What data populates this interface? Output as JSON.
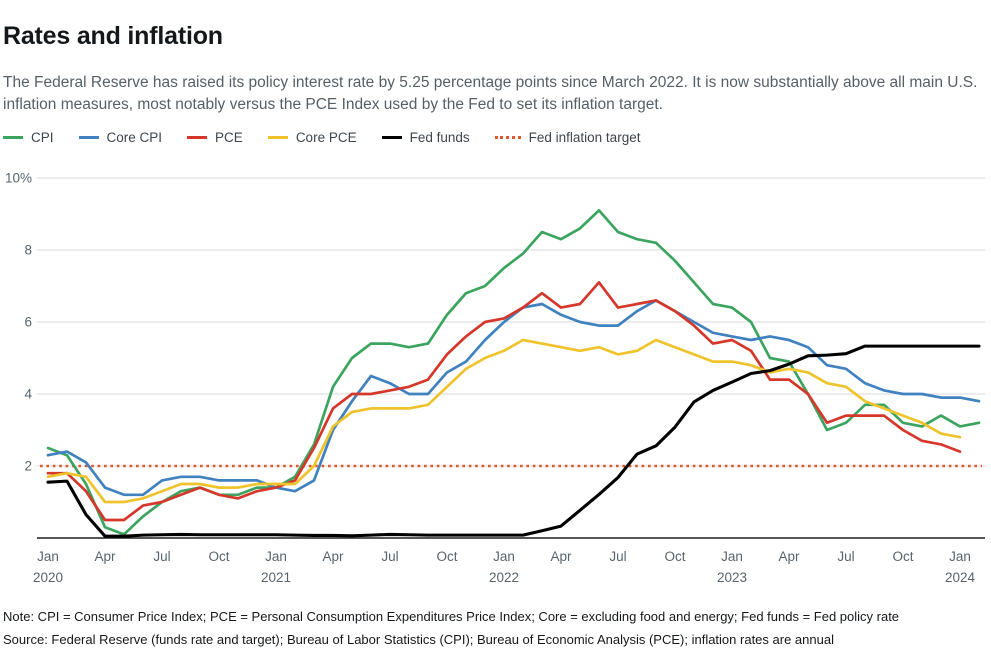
{
  "header": {
    "title": "Rates and inflation",
    "subtitle": "The Federal Reserve has raised its policy interest rate by 5.25 percentage points since March 2022. It is now substantially above all main U.S. inflation measures, most notably versus the PCE Index used by the Fed to set its inflation target."
  },
  "legend": {
    "items": [
      {
        "label": "CPI",
        "color": "#3ba45e",
        "style": "solid"
      },
      {
        "label": "Core CPI",
        "color": "#4081bf",
        "style": "solid"
      },
      {
        "label": "PCE",
        "color": "#d5372b",
        "style": "solid"
      },
      {
        "label": "Core PCE",
        "color": "#efc32c",
        "style": "solid"
      },
      {
        "label": "Fed funds",
        "color": "#000000",
        "style": "solid"
      },
      {
        "label": "Fed inflation target",
        "color": "#dc5a2b",
        "style": "dotted"
      }
    ]
  },
  "chart_data": {
    "type": "line",
    "title": "Rates and inflation",
    "x_unit": "month",
    "x_start": "2020-01",
    "x_end": "2024-02",
    "ylim": [
      0,
      10
    ],
    "grid": "horizontal",
    "legend_position": "top",
    "y_ticks": [
      {
        "v": 10,
        "label": "10%"
      },
      {
        "v": 8,
        "label": "8"
      },
      {
        "v": 6,
        "label": "6"
      },
      {
        "v": 4,
        "label": "4"
      },
      {
        "v": 2,
        "label": "2"
      }
    ],
    "x_ticks": [
      {
        "m": 0,
        "label": "Jan",
        "year": "2020"
      },
      {
        "m": 3,
        "label": "Apr"
      },
      {
        "m": 6,
        "label": "Jul"
      },
      {
        "m": 9,
        "label": "Oct"
      },
      {
        "m": 12,
        "label": "Jan",
        "year": "2021"
      },
      {
        "m": 15,
        "label": "Apr"
      },
      {
        "m": 18,
        "label": "Jul"
      },
      {
        "m": 21,
        "label": "Oct"
      },
      {
        "m": 24,
        "label": "Jan",
        "year": "2022"
      },
      {
        "m": 27,
        "label": "Apr"
      },
      {
        "m": 30,
        "label": "Jul"
      },
      {
        "m": 33,
        "label": "Oct"
      },
      {
        "m": 36,
        "label": "Jan",
        "year": "2023"
      },
      {
        "m": 39,
        "label": "Apr"
      },
      {
        "m": 42,
        "label": "Jul"
      },
      {
        "m": 45,
        "label": "Oct"
      },
      {
        "m": 48,
        "label": "Jan",
        "year": "2024"
      }
    ],
    "target_line": {
      "name": "Fed inflation target",
      "value": 2,
      "color": "#dc5a2b",
      "style": "dotted"
    },
    "series": [
      {
        "name": "CPI",
        "color": "#3ba45e",
        "width": 2.7,
        "values": [
          2.5,
          2.3,
          1.5,
          0.3,
          0.1,
          0.6,
          1.0,
          1.3,
          1.4,
          1.2,
          1.2,
          1.4,
          1.4,
          1.7,
          2.6,
          4.2,
          5.0,
          5.4,
          5.4,
          5.3,
          5.4,
          6.2,
          6.8,
          7.0,
          7.5,
          7.9,
          8.5,
          8.3,
          8.6,
          9.1,
          8.5,
          8.3,
          8.2,
          7.7,
          7.1,
          6.5,
          6.4,
          6.0,
          5.0,
          4.9,
          4.0,
          3.0,
          3.2,
          3.7,
          3.7,
          3.2,
          3.1,
          3.4,
          3.1,
          3.2
        ]
      },
      {
        "name": "Core CPI",
        "color": "#4081bf",
        "width": 2.7,
        "values": [
          2.3,
          2.4,
          2.1,
          1.4,
          1.2,
          1.2,
          1.6,
          1.7,
          1.7,
          1.6,
          1.6,
          1.6,
          1.4,
          1.3,
          1.6,
          3.0,
          3.8,
          4.5,
          4.3,
          4.0,
          4.0,
          4.6,
          4.9,
          5.5,
          6.0,
          6.4,
          6.5,
          6.2,
          6.0,
          5.9,
          5.9,
          6.3,
          6.6,
          6.3,
          6.0,
          5.7,
          5.6,
          5.5,
          5.6,
          5.5,
          5.3,
          4.8,
          4.7,
          4.3,
          4.1,
          4.0,
          4.0,
          3.9,
          3.9,
          3.8
        ]
      },
      {
        "name": "PCE",
        "color": "#d5372b",
        "width": 2.7,
        "values": [
          1.8,
          1.8,
          1.3,
          0.5,
          0.5,
          0.9,
          1.0,
          1.2,
          1.4,
          1.2,
          1.1,
          1.3,
          1.4,
          1.6,
          2.5,
          3.6,
          4.0,
          4.0,
          4.1,
          4.2,
          4.4,
          5.1,
          5.6,
          6.0,
          6.1,
          6.4,
          6.8,
          6.4,
          6.5,
          7.1,
          6.4,
          6.5,
          6.6,
          6.3,
          5.9,
          5.4,
          5.5,
          5.2,
          4.4,
          4.4,
          4.0,
          3.2,
          3.4,
          3.4,
          3.4,
          3.0,
          2.7,
          2.6,
          2.4
        ]
      },
      {
        "name": "Core PCE",
        "color": "#efc32c",
        "width": 2.7,
        "values": [
          1.7,
          1.8,
          1.7,
          1.0,
          1.0,
          1.1,
          1.3,
          1.5,
          1.5,
          1.4,
          1.4,
          1.5,
          1.5,
          1.5,
          2.0,
          3.1,
          3.5,
          3.6,
          3.6,
          3.6,
          3.7,
          4.2,
          4.7,
          5.0,
          5.2,
          5.5,
          5.4,
          5.3,
          5.2,
          5.3,
          5.1,
          5.2,
          5.5,
          5.3,
          5.1,
          4.9,
          4.9,
          4.8,
          4.6,
          4.7,
          4.6,
          4.3,
          4.2,
          3.8,
          3.6,
          3.4,
          3.2,
          2.9,
          2.8
        ]
      },
      {
        "name": "Fed funds",
        "color": "#000000",
        "width": 3.1,
        "values": [
          1.55,
          1.58,
          0.65,
          0.05,
          0.05,
          0.08,
          0.09,
          0.1,
          0.09,
          0.09,
          0.09,
          0.09,
          0.09,
          0.08,
          0.07,
          0.07,
          0.06,
          0.08,
          0.1,
          0.09,
          0.08,
          0.08,
          0.08,
          0.08,
          0.08,
          0.08,
          0.2,
          0.33,
          0.77,
          1.21,
          1.68,
          2.33,
          2.56,
          3.08,
          3.78,
          4.1,
          4.33,
          4.57,
          4.65,
          4.83,
          5.06,
          5.08,
          5.12,
          5.33,
          5.33,
          5.33,
          5.33,
          5.33,
          5.33,
          5.33
        ]
      }
    ]
  },
  "footer": {
    "note": "Note: CPI = Consumer Price Index; PCE = Personal Consumption Expenditures Price Index; Core = excluding food and energy; Fed funds = Fed policy rate",
    "source": "Source: Federal Reserve (funds rate and target); Bureau of Labor Statistics (CPI); Bureau of Economic Analysis (PCE); inflation rates are annual"
  }
}
